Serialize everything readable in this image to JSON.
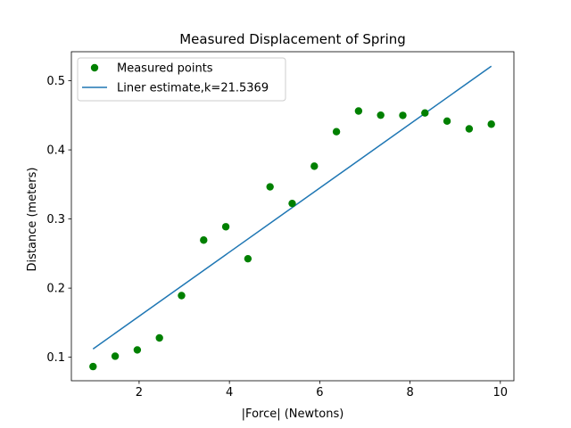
{
  "chart_data": {
    "type": "scatter",
    "title": "Measured Displacement of Spring",
    "xlabel": "|Force| (Newtons)",
    "ylabel": "Distance (meters)",
    "xlim": [
      0.5,
      10.3
    ],
    "ylim": [
      0.066,
      0.542
    ],
    "xticks": [
      2,
      4,
      6,
      8,
      10
    ],
    "yticks": [
      0.1,
      0.2,
      0.3,
      0.4,
      0.5
    ],
    "grid": false,
    "legend_position": "upper-left",
    "series": [
      {
        "name": "Measured points",
        "kind": "scatter",
        "color": "#008000",
        "x": [
          0.98,
          1.47,
          1.96,
          2.45,
          2.94,
          3.43,
          3.92,
          4.41,
          4.9,
          5.39,
          5.88,
          6.37,
          6.86,
          7.35,
          7.84,
          8.33,
          8.82,
          9.31,
          9.8
        ],
        "y": [
          0.0865,
          0.1015,
          0.1106,
          0.1279,
          0.1892,
          0.2695,
          0.2888,
          0.2425,
          0.3465,
          0.3225,
          0.3764,
          0.4263,
          0.4562,
          0.4502,
          0.4499,
          0.4534,
          0.4416,
          0.4304,
          0.4372
        ]
      },
      {
        "name": "Liner estimate,k=21.5369",
        "kind": "line",
        "color": "#1f77b4",
        "x": [
          0.98,
          9.8
        ],
        "y": [
          0.112,
          0.521
        ]
      }
    ]
  }
}
